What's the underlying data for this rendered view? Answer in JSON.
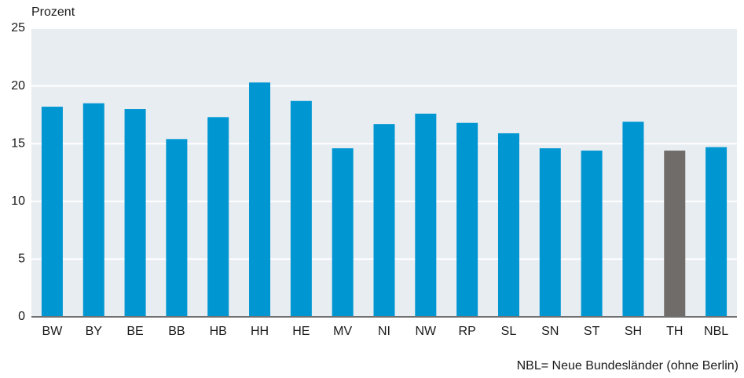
{
  "chart_data": {
    "type": "bar",
    "y_label": "Prozent",
    "categories": [
      "BW",
      "BY",
      "BE",
      "BB",
      "HB",
      "HH",
      "HE",
      "MV",
      "NI",
      "NW",
      "RP",
      "SL",
      "SN",
      "ST",
      "SH",
      "TH",
      "NBL"
    ],
    "values": [
      18.2,
      18.5,
      18.0,
      15.4,
      17.3,
      20.3,
      18.7,
      14.6,
      16.7,
      17.6,
      16.8,
      15.9,
      14.6,
      14.4,
      16.9,
      14.4,
      14.7
    ],
    "colors": [
      "#0096d1",
      "#0096d1",
      "#0096d1",
      "#0096d1",
      "#0096d1",
      "#0096d1",
      "#0096d1",
      "#0096d1",
      "#0096d1",
      "#0096d1",
      "#0096d1",
      "#0096d1",
      "#0096d1",
      "#0096d1",
      "#0096d1",
      "#706c69",
      "#0096d1"
    ],
    "ylim": [
      0,
      25
    ],
    "yticks": [
      0,
      5,
      10,
      15,
      20,
      25
    ],
    "grid": true,
    "annotation": "NBL= Neue Bundesländer (ohne Berlin)"
  }
}
